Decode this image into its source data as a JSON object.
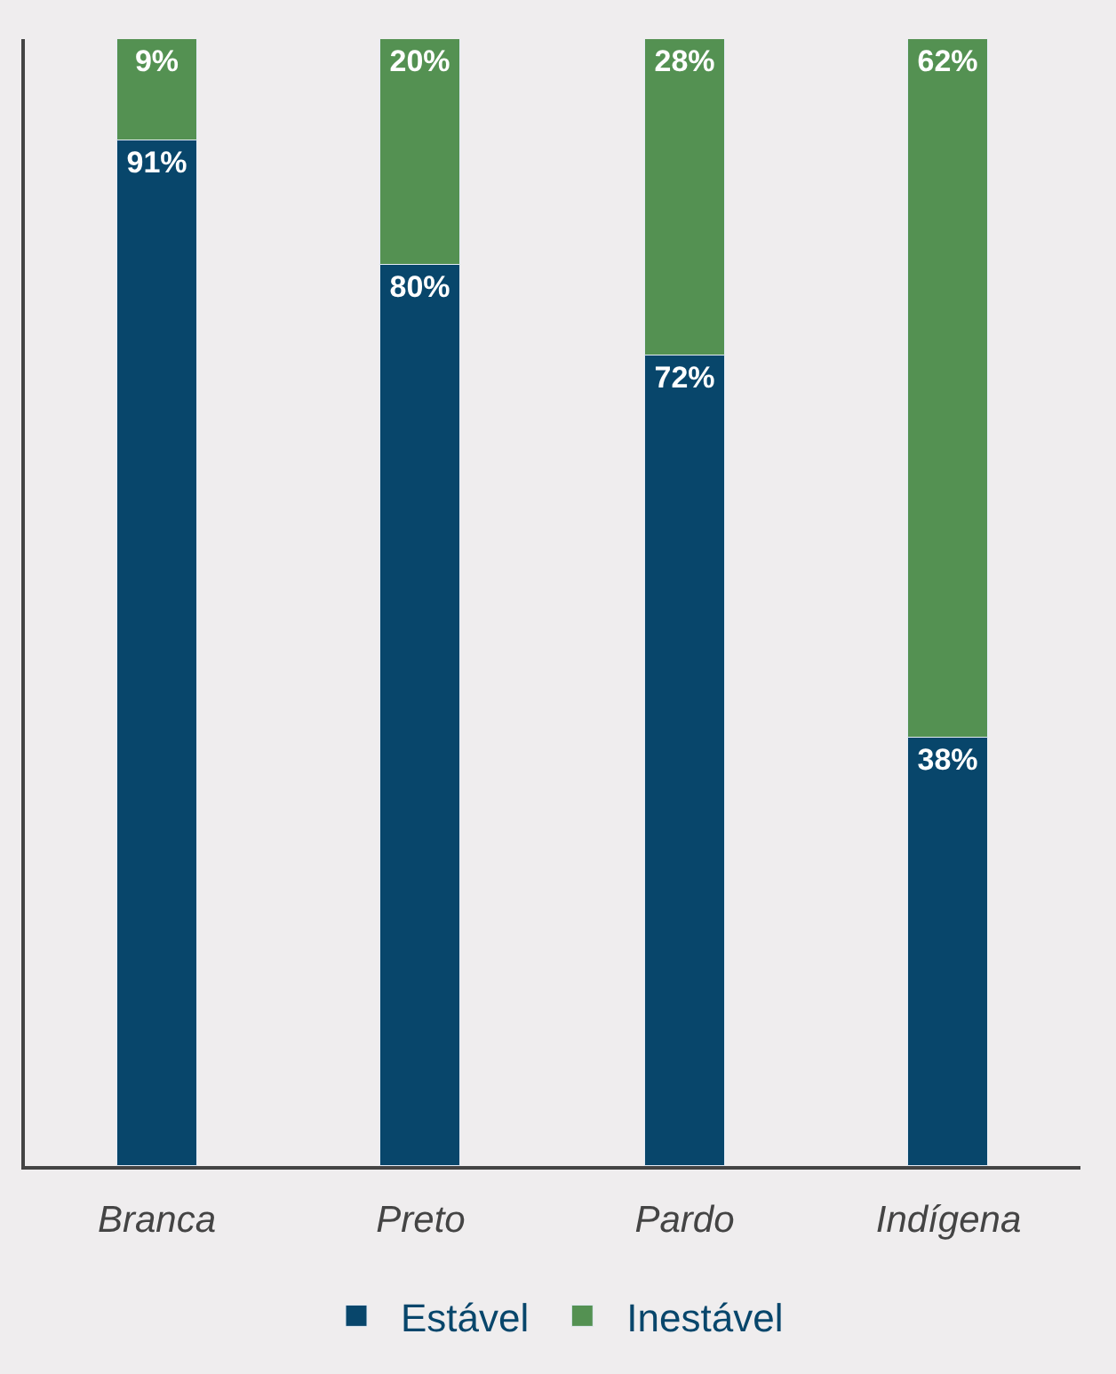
{
  "chart_data": {
    "type": "bar",
    "stacked": true,
    "categories": [
      "Branca",
      "Preto",
      "Pardo",
      "Indígena"
    ],
    "series": [
      {
        "name": "Estável",
        "color": "#08466b",
        "values": [
          91,
          80,
          72,
          38
        ],
        "value_labels": [
          "91%",
          "80%",
          "72%",
          "38%"
        ]
      },
      {
        "name": "Inestável",
        "color": "#549152",
        "values": [
          9,
          20,
          28,
          62
        ],
        "value_labels": [
          "9%",
          "20%",
          "28%",
          "62%"
        ]
      }
    ],
    "legend": "bottom",
    "tick_labels": "x",
    "grid": false
  }
}
